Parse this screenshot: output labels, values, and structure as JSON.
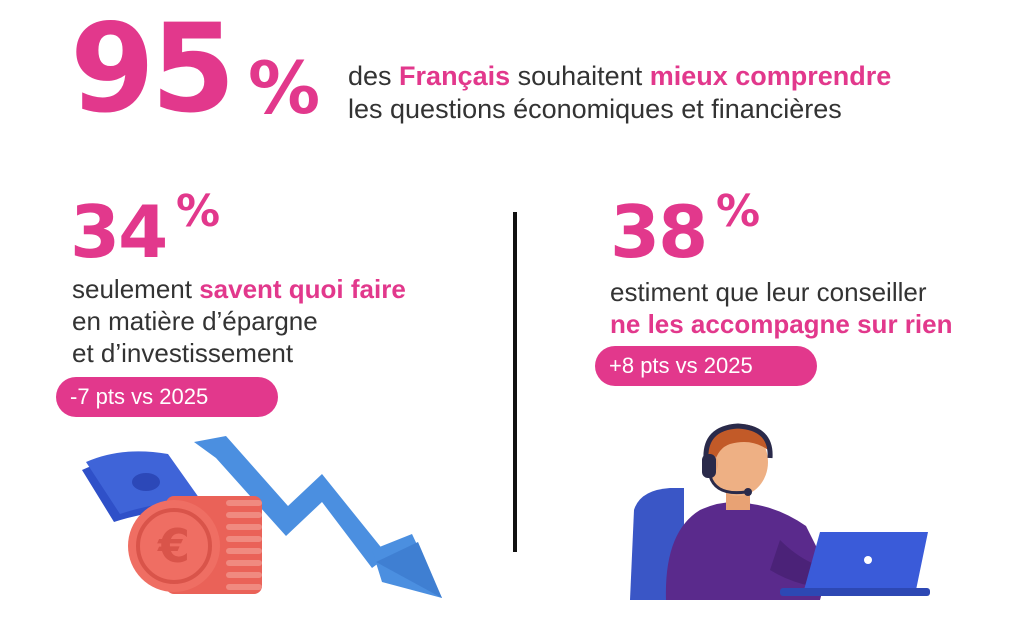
{
  "hero": {
    "number": "95",
    "percent": "%",
    "text_1": "des ",
    "text_bold_1": "Français",
    "text_2": " souhaitent ",
    "text_bold_2": "mieux comprendre",
    "text_3": "les questions économiques et financières"
  },
  "left_stat": {
    "number": "34",
    "percent": "%",
    "text_1": "seulement ",
    "text_bold": "savent quoi faire",
    "text_2": "en matière d’épargne",
    "text_3": "et d’investissement",
    "badge": "-7 pts vs 2025"
  },
  "right_stat": {
    "number": "38",
    "percent": "%",
    "text_1": "estiment que leur conseiller",
    "text_bold": "ne les accompagne sur rien",
    "badge": "+8 pts vs 2025"
  },
  "colors": {
    "accent": "#e2388c",
    "text": "#333333",
    "divider": "#111111",
    "arrow": "#4b8fe0",
    "coin": "#ef6e63",
    "bill": "#3f64d8",
    "shirt": "#5a2a8c",
    "laptop": "#3a5bd9"
  },
  "icons": {
    "left_illustration": "falling-savings-icon",
    "right_illustration": "advisor-headset-icon"
  }
}
